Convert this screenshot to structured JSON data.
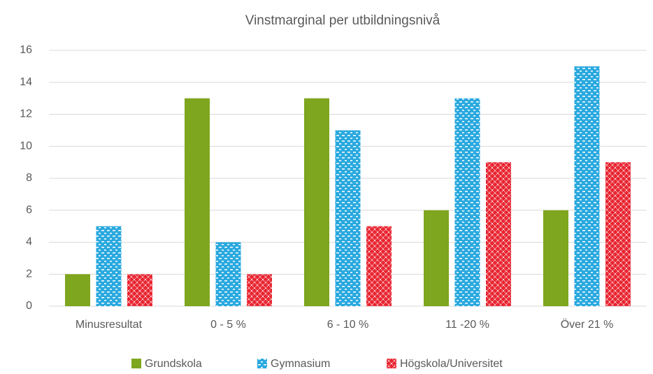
{
  "chart_data": {
    "type": "bar",
    "title": "Vinstmarginal per utbildningsnivå",
    "categories": [
      "Minusresultat",
      "0 - 5 %",
      "6 - 10 %",
      "11 -20 %",
      "Över 21 %"
    ],
    "series": [
      {
        "name": "Grundskola",
        "color": "#7ea61e",
        "values": [
          2,
          13,
          13,
          6,
          6
        ]
      },
      {
        "name": "Gymnasium",
        "color": "#2aa9df",
        "values": [
          5,
          4,
          11,
          13,
          15
        ]
      },
      {
        "name": "Högskola/Universitet",
        "color": "#e8232f",
        "values": [
          2,
          2,
          5,
          9,
          9
        ]
      }
    ],
    "ylim": [
      0,
      16
    ],
    "yticks": [
      0,
      2,
      4,
      6,
      8,
      10,
      12,
      14,
      16
    ],
    "grid": true,
    "legend": "bottom"
  }
}
